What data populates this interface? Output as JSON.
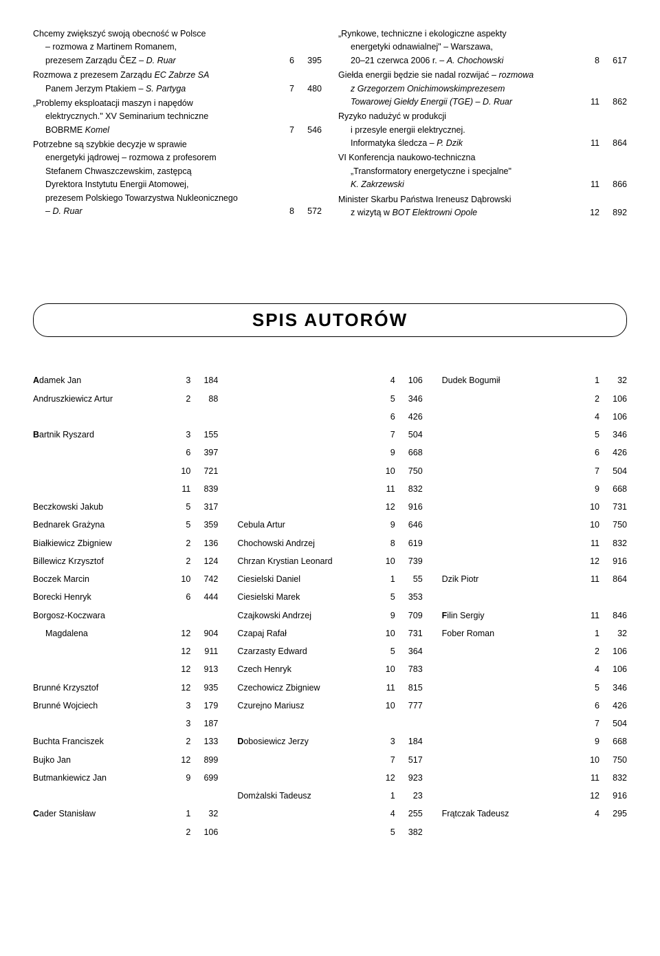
{
  "left_entries": [
    {
      "lines": [
        "Chcemy zwiększyć swoją obecność w Polsce",
        "– rozmowa z Martinem Romanem,"
      ],
      "tail": "prezesem Zarządu ČEZ – <i>D. Ruar</i>",
      "n1": "6",
      "n2": "395"
    },
    {
      "lines": [
        "Rozmowa z prezesem Zarządu <i>EC Zabrze SA</i>"
      ],
      "tail": "Panem Jerzym Ptakiem – <i>S. Partyga</i>",
      "n1": "7",
      "n2": "480"
    },
    {
      "lines": [
        "„Problemy eksploatacji maszyn i napędów",
        "elektrycznych.\" XV Seminarium techniczne"
      ],
      "tail": "BOBRME <i>Komel</i>",
      "n1": "7",
      "n2": "546"
    },
    {
      "lines": [
        "Potrzebne są szybkie decyzje w sprawie",
        "energetyki jądrowej – rozmowa z profesorem",
        "Stefanem Chwaszczewskim, zastępcą",
        "Dyrektora Instytutu Energii Atomowej,",
        "prezesem Polskiego Towarzystwa Nukleonicznego"
      ],
      "tail": "– <i>D. Ruar</i>",
      "n1": "8",
      "n2": "572"
    }
  ],
  "right_entries": [
    {
      "lines": [
        "„Rynkowe, techniczne i ekologiczne aspekty",
        "energetyki odnawialnej\" – Warszawa,"
      ],
      "tail": "20–21 czerwca 2006 r. – <i>A. Chochowski</i>",
      "n1": "8",
      "n2": "617"
    },
    {
      "lines": [
        "Giełda energii będzie sie nadal rozwijać  – <i>rozmowa</i>",
        "<i>z Grzegorzem Onichimowskimprezesem</i>"
      ],
      "tail": "<i>Towarowej Giełdy Energii (TGE) – D. Ruar</i>",
      "n1": "11",
      "n2": "862"
    },
    {
      "lines": [
        "Ryzyko nadużyć w produkcji",
        "i przesyle energii elektrycznej."
      ],
      "tail": "Informatyka śledcza – <i>P. Dzik</i>",
      "n1": "11",
      "n2": "864"
    },
    {
      "lines": [
        "VI Konferencja naukowo-techniczna",
        "„Transformatory energetyczne i specjalne\""
      ],
      "tail": "<i>K. Zakrzewski</i>",
      "n1": "11",
      "n2": "866"
    },
    {
      "lines": [
        "Minister Skarbu Państwa Ireneusz Dąbrowski"
      ],
      "tail": "z wizytą w <i>BOT Elektrowni Opole</i>",
      "n1": "12",
      "n2": "892"
    }
  ],
  "section_title": "SPIS  AUTORÓW",
  "authors_cols": [
    [
      {
        "name": "Adamek Jan",
        "n1": "3",
        "n2": "184",
        "bold": true
      },
      {
        "name": "Andruszkiewicz Artur",
        "n1": "2",
        "n2": "88"
      },
      {
        "name": "",
        "n1": "",
        "n2": ""
      },
      {
        "name": "Bartnik Ryszard",
        "n1": "3",
        "n2": "155",
        "bold": true
      },
      {
        "name": "",
        "n1": "6",
        "n2": "397"
      },
      {
        "name": "",
        "n1": "10",
        "n2": "721"
      },
      {
        "name": "",
        "n1": "11",
        "n2": "839"
      },
      {
        "name": "Beczkowski Jakub",
        "n1": "5",
        "n2": "317"
      },
      {
        "name": "Bednarek Grażyna",
        "n1": "5",
        "n2": "359"
      },
      {
        "name": "Białkiewicz Zbigniew",
        "n1": "2",
        "n2": "136"
      },
      {
        "name": "Billewicz Krzysztof",
        "n1": "2",
        "n2": "124"
      },
      {
        "name": "Boczek Marcin",
        "n1": "10",
        "n2": "742"
      },
      {
        "name": "Borecki Henryk",
        "n1": "6",
        "n2": "444"
      },
      {
        "name": "Borgosz-Koczwara",
        "n1": "",
        "n2": ""
      },
      {
        "name": "Magdalena",
        "n1": "12",
        "n2": "904",
        "indent": true
      },
      {
        "name": "",
        "n1": "12",
        "n2": "911"
      },
      {
        "name": "",
        "n1": "12",
        "n2": "913"
      },
      {
        "name": "Brunné Krzysztof",
        "n1": "12",
        "n2": "935"
      },
      {
        "name": "Brunné Wojciech",
        "n1": "3",
        "n2": "179"
      },
      {
        "name": "",
        "n1": "3",
        "n2": "187"
      },
      {
        "name": "Buchta Franciszek",
        "n1": "2",
        "n2": "133"
      },
      {
        "name": "Bujko Jan",
        "n1": "12",
        "n2": "899"
      },
      {
        "name": "Butmankiewicz Jan",
        "n1": "9",
        "n2": "699"
      },
      {
        "name": "",
        "n1": "",
        "n2": ""
      },
      {
        "name": "Cader Stanisław",
        "n1": "1",
        "n2": "32",
        "bold": true
      },
      {
        "name": "",
        "n1": "2",
        "n2": "106"
      }
    ],
    [
      {
        "name": "",
        "n1": "4",
        "n2": "106"
      },
      {
        "name": "",
        "n1": "5",
        "n2": "346"
      },
      {
        "name": "",
        "n1": "6",
        "n2": "426"
      },
      {
        "name": "",
        "n1": "7",
        "n2": "504"
      },
      {
        "name": "",
        "n1": "9",
        "n2": "668"
      },
      {
        "name": "",
        "n1": "10",
        "n2": "750"
      },
      {
        "name": "",
        "n1": "11",
        "n2": "832"
      },
      {
        "name": "",
        "n1": "12",
        "n2": "916"
      },
      {
        "name": "Cebula Artur",
        "n1": "9",
        "n2": "646"
      },
      {
        "name": "Chochowski Andrzej",
        "n1": "8",
        "n2": "619"
      },
      {
        "name": "Chrzan Krystian Leonard",
        "n1": "10",
        "n2": "739"
      },
      {
        "name": "Ciesielski Daniel",
        "n1": "1",
        "n2": "55"
      },
      {
        "name": "Ciesielski Marek",
        "n1": "5",
        "n2": "353"
      },
      {
        "name": "Czajkowski Andrzej",
        "n1": "9",
        "n2": "709"
      },
      {
        "name": "Czapaj Rafał",
        "n1": "10",
        "n2": "731"
      },
      {
        "name": "Czarzasty Edward",
        "n1": "5",
        "n2": "364"
      },
      {
        "name": "Czech Henryk",
        "n1": "10",
        "n2": "783"
      },
      {
        "name": "Czechowicz Zbigniew",
        "n1": "11",
        "n2": "815"
      },
      {
        "name": "Czurejno Mariusz",
        "n1": "10",
        "n2": "777"
      },
      {
        "name": "",
        "n1": "",
        "n2": ""
      },
      {
        "name": "Dobosiewicz Jerzy",
        "n1": "3",
        "n2": "184",
        "bold": true
      },
      {
        "name": "",
        "n1": "7",
        "n2": "517"
      },
      {
        "name": "",
        "n1": "12",
        "n2": "923"
      },
      {
        "name": "Domżalski Tadeusz",
        "n1": "1",
        "n2": "23"
      },
      {
        "name": "",
        "n1": "4",
        "n2": "255"
      },
      {
        "name": "",
        "n1": "5",
        "n2": "382"
      }
    ],
    [
      {
        "name": "Dudek Bogumił",
        "n1": "1",
        "n2": "32"
      },
      {
        "name": "",
        "n1": "2",
        "n2": "106"
      },
      {
        "name": "",
        "n1": "4",
        "n2": "106"
      },
      {
        "name": "",
        "n1": "5",
        "n2": "346"
      },
      {
        "name": "",
        "n1": "6",
        "n2": "426"
      },
      {
        "name": "",
        "n1": "7",
        "n2": "504"
      },
      {
        "name": "",
        "n1": "9",
        "n2": "668"
      },
      {
        "name": "",
        "n1": "10",
        "n2": "731"
      },
      {
        "name": "",
        "n1": "10",
        "n2": "750"
      },
      {
        "name": "",
        "n1": "11",
        "n2": "832"
      },
      {
        "name": "",
        "n1": "12",
        "n2": "916"
      },
      {
        "name": "Dzik Piotr",
        "n1": "11",
        "n2": "864"
      },
      {
        "name": "",
        "n1": "",
        "n2": ""
      },
      {
        "name": "Filin Sergiy",
        "n1": "11",
        "n2": "846",
        "bold": true
      },
      {
        "name": "Fober Roman",
        "n1": "1",
        "n2": "32"
      },
      {
        "name": "",
        "n1": "2",
        "n2": "106"
      },
      {
        "name": "",
        "n1": "4",
        "n2": "106"
      },
      {
        "name": "",
        "n1": "5",
        "n2": "346"
      },
      {
        "name": "",
        "n1": "6",
        "n2": "426"
      },
      {
        "name": "",
        "n1": "7",
        "n2": "504"
      },
      {
        "name": "",
        "n1": "9",
        "n2": "668"
      },
      {
        "name": "",
        "n1": "10",
        "n2": "750"
      },
      {
        "name": "",
        "n1": "11",
        "n2": "832"
      },
      {
        "name": "",
        "n1": "12",
        "n2": "916"
      },
      {
        "name": "Frątczak Tadeusz",
        "n1": "4",
        "n2": "295"
      }
    ]
  ]
}
